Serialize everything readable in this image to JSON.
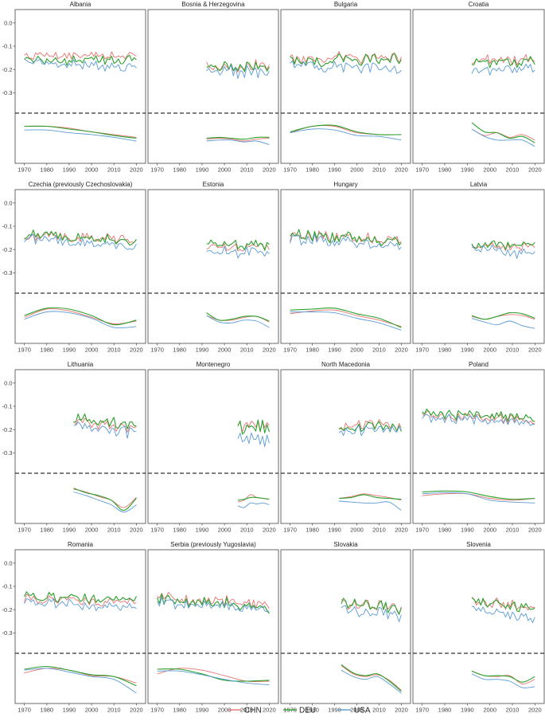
{
  "chart_data": {
    "type": "line",
    "layout": "small-multiples 4x4",
    "x_ticks": [
      1970,
      1980,
      1990,
      2000,
      2010,
      2020
    ],
    "xlim": [
      1968,
      2022
    ],
    "y_ticks": [
      "0.0",
      "-0.1",
      "-0.2",
      "-0.3"
    ],
    "ylim_upper": [
      0.03,
      -0.36
    ],
    "divider": "dashed",
    "grid": false,
    "legend_position": "bottom",
    "series": [
      {
        "name": "CHN",
        "color": "#e4736f"
      },
      {
        "name": "DEU",
        "color": "#2ca02c"
      },
      {
        "name": "USA",
        "color": "#5b9bd5"
      }
    ],
    "panels": [
      {
        "title": "Albania",
        "start": 1970,
        "levels": [
          -0.14,
          -0.16,
          -0.18
        ],
        "trend": [
          0,
          0,
          0.03
        ],
        "noise": 0.02,
        "smooth": [
          [
            -0.07,
            -0.07,
            -0.11
          ],
          [
            -0.07,
            -0.07,
            -0.11
          ],
          [
            -0.09,
            -0.1,
            -0.14
          ],
          [
            -0.13,
            -0.13,
            -0.16
          ],
          [
            -0.16,
            -0.17,
            -0.19
          ],
          [
            -0.19,
            -0.2,
            -0.23
          ]
        ]
      },
      {
        "title": "Bosnia & Herzegovina",
        "start": 1992,
        "levels": [
          -0.19,
          -0.19,
          -0.21
        ],
        "trend": [
          0,
          0,
          0
        ],
        "noise": 0.03,
        "smooth": [
          [
            -0.21,
            -0.2,
            -0.23
          ],
          [
            -0.2,
            -0.19,
            -0.22
          ],
          [
            -0.21,
            -0.2,
            -0.22
          ],
          [
            -0.23,
            -0.21,
            -0.24
          ],
          [
            -0.21,
            -0.19,
            -0.23
          ],
          [
            -0.2,
            -0.19,
            -0.27
          ]
        ]
      },
      {
        "title": "Bulgaria",
        "start": 1970,
        "levels": [
          -0.15,
          -0.16,
          -0.19
        ],
        "trend": [
          0,
          0,
          0.03
        ],
        "noise": 0.025,
        "smooth": [
          [
            -0.14,
            -0.13,
            -0.14
          ],
          [
            -0.07,
            -0.07,
            -0.1
          ],
          [
            -0.07,
            -0.06,
            -0.11
          ],
          [
            -0.14,
            -0.13,
            -0.17
          ],
          [
            -0.16,
            -0.16,
            -0.18
          ],
          [
            -0.16,
            -0.16,
            -0.22
          ]
        ]
      },
      {
        "title": "Croatia",
        "start": 1992,
        "levels": [
          -0.16,
          -0.17,
          -0.2
        ],
        "trend": [
          0,
          0,
          0
        ],
        "noise": 0.025,
        "smooth": [
          [
            -0.1,
            -0.03,
            -0.1
          ],
          [
            -0.17,
            -0.13,
            -0.18
          ],
          [
            -0.14,
            -0.14,
            -0.22
          ],
          [
            -0.19,
            -0.2,
            -0.22
          ],
          [
            -0.16,
            -0.18,
            -0.22
          ],
          [
            -0.22,
            -0.25,
            -0.29
          ]
        ]
      },
      {
        "title": "Czechia (previously Czechoslovakia)",
        "start": 1970,
        "levels": [
          -0.15,
          -0.15,
          -0.17
        ],
        "trend": [
          0.02,
          0.03,
          0.04
        ],
        "noise": 0.02,
        "smooth": [
          [
            -0.19,
            -0.17,
            -0.21
          ],
          [
            -0.1,
            -0.09,
            -0.13
          ],
          [
            -0.12,
            -0.1,
            -0.14
          ],
          [
            -0.19,
            -0.17,
            -0.2
          ],
          [
            -0.26,
            -0.27,
            -0.3
          ],
          [
            -0.23,
            -0.22,
            -0.29
          ]
        ]
      },
      {
        "title": "Estonia",
        "start": 1992,
        "levels": [
          -0.19,
          -0.18,
          -0.21
        ],
        "trend": [
          0,
          0,
          0
        ],
        "noise": 0.025,
        "smooth": [
          [
            -0.17,
            -0.14,
            -0.17
          ],
          [
            -0.22,
            -0.22,
            -0.24
          ],
          [
            -0.22,
            -0.21,
            -0.25
          ],
          [
            -0.19,
            -0.18,
            -0.22
          ],
          [
            -0.18,
            -0.18,
            -0.23
          ],
          [
            -0.24,
            -0.23,
            -0.3
          ]
        ]
      },
      {
        "title": "Hungary",
        "start": 1970,
        "levels": [
          -0.15,
          -0.15,
          -0.17
        ],
        "trend": [
          0.02,
          0.03,
          0.03
        ],
        "noise": 0.025,
        "smooth": [
          [
            -0.15,
            -0.11,
            -0.13
          ],
          [
            -0.12,
            -0.1,
            -0.13
          ],
          [
            -0.11,
            -0.09,
            -0.14
          ],
          [
            -0.17,
            -0.15,
            -0.2
          ],
          [
            -0.22,
            -0.2,
            -0.25
          ],
          [
            -0.29,
            -0.3,
            -0.33
          ]
        ]
      },
      {
        "title": "Latvia",
        "start": 1992,
        "levels": [
          -0.19,
          -0.18,
          -0.21
        ],
        "trend": [
          0,
          0,
          0.03
        ],
        "noise": 0.025,
        "smooth": [
          [
            -0.18,
            -0.17,
            -0.2
          ],
          [
            -0.21,
            -0.21,
            -0.24
          ],
          [
            -0.18,
            -0.18,
            -0.27
          ],
          [
            -0.16,
            -0.14,
            -0.23
          ],
          [
            -0.17,
            -0.15,
            -0.28
          ],
          [
            -0.21,
            -0.2,
            -0.31
          ]
        ]
      },
      {
        "title": "Lithuania",
        "start": 1992,
        "levels": [
          -0.18,
          -0.17,
          -0.2
        ],
        "trend": [
          0.04,
          0.04,
          0.04
        ],
        "noise": 0.025,
        "smooth": [
          [
            -0.1,
            -0.09,
            -0.13
          ],
          [
            -0.13,
            -0.14,
            -0.17
          ],
          [
            -0.18,
            -0.17,
            -0.22
          ],
          [
            -0.22,
            -0.22,
            -0.27
          ],
          [
            -0.3,
            -0.33,
            -0.35
          ],
          [
            -0.19,
            -0.2,
            -0.27
          ]
        ]
      },
      {
        "title": "Montenegro",
        "start": 2006,
        "levels": [
          -0.18,
          -0.19,
          -0.24
        ],
        "trend": [
          0,
          0,
          0
        ],
        "noise": 0.03,
        "smooth": [
          [
            -0.24,
            -0.22,
            -0.28
          ],
          [
            -0.22,
            -0.21,
            -0.3
          ],
          [
            -0.16,
            -0.19,
            -0.25
          ],
          [
            -0.19,
            -0.19,
            -0.26
          ],
          [
            -0.2,
            -0.2,
            -0.25
          ],
          [
            -0.21,
            -0.21,
            -0.27
          ]
        ]
      },
      {
        "title": "North Macedonia",
        "start": 1992,
        "levels": [
          -0.18,
          -0.19,
          -0.2
        ],
        "trend": [
          0,
          0,
          0
        ],
        "noise": 0.025,
        "smooth": [
          [
            -0.2,
            -0.2,
            -0.23
          ],
          [
            -0.18,
            -0.19,
            -0.24
          ],
          [
            -0.15,
            -0.16,
            -0.25
          ],
          [
            -0.17,
            -0.19,
            -0.25
          ],
          [
            -0.19,
            -0.2,
            -0.24
          ],
          [
            -0.22,
            -0.21,
            -0.33
          ]
        ]
      },
      {
        "title": "Poland",
        "start": 1970,
        "levels": [
          -0.15,
          -0.14,
          -0.16
        ],
        "trend": [
          0.02,
          0.02,
          0.02
        ],
        "noise": 0.02,
        "smooth": [
          [
            -0.17,
            -0.13,
            -0.15
          ],
          [
            -0.15,
            -0.12,
            -0.14
          ],
          [
            -0.15,
            -0.13,
            -0.15
          ],
          [
            -0.2,
            -0.18,
            -0.22
          ],
          [
            -0.22,
            -0.21,
            -0.24
          ],
          [
            -0.2,
            -0.2,
            -0.25
          ]
        ]
      },
      {
        "title": "Romania",
        "start": 1970,
        "levels": [
          -0.16,
          -0.15,
          -0.18
        ],
        "trend": [
          0.02,
          0.02,
          0.03
        ],
        "noise": 0.02,
        "smooth": [
          [
            -0.14,
            -0.1,
            -0.11
          ],
          [
            -0.09,
            -0.07,
            -0.09
          ],
          [
            -0.11,
            -0.11,
            -0.13
          ],
          [
            -0.17,
            -0.16,
            -0.18
          ],
          [
            -0.18,
            -0.18,
            -0.21
          ],
          [
            -0.25,
            -0.28,
            -0.36
          ]
        ]
      },
      {
        "title": "Serbia (previously Yugoslavia)",
        "start": 1970,
        "levels": [
          -0.16,
          -0.17,
          -0.18
        ],
        "trend": [
          0.03,
          0.04,
          0.03
        ],
        "noise": 0.025,
        "smooth": [
          [
            -0.15,
            -0.1,
            -0.12
          ],
          [
            -0.09,
            -0.1,
            -0.12
          ],
          [
            -0.11,
            -0.15,
            -0.16
          ],
          [
            -0.17,
            -0.22,
            -0.21
          ],
          [
            -0.23,
            -0.23,
            -0.25
          ],
          [
            -0.23,
            -0.22,
            -0.27
          ]
        ]
      },
      {
        "title": "Slovakia",
        "start": 1993,
        "levels": [
          -0.18,
          -0.18,
          -0.21
        ],
        "trend": [
          0.03,
          0.03,
          0.03
        ],
        "noise": 0.025,
        "smooth": [
          [
            -0.06,
            -0.05,
            -0.11
          ],
          [
            -0.15,
            -0.14,
            -0.18
          ],
          [
            -0.18,
            -0.17,
            -0.21
          ],
          [
            -0.16,
            -0.15,
            -0.18
          ],
          [
            -0.22,
            -0.23,
            -0.26
          ],
          [
            -0.33,
            -0.34,
            -0.36
          ]
        ]
      },
      {
        "title": "Slovenia",
        "start": 1992,
        "levels": [
          -0.18,
          -0.18,
          -0.22
        ],
        "trend": [
          0.02,
          0.02,
          0.03
        ],
        "noise": 0.025,
        "smooth": [
          [
            -0.12,
            -0.12,
            -0.15
          ],
          [
            -0.17,
            -0.17,
            -0.21
          ],
          [
            -0.18,
            -0.17,
            -0.21
          ],
          [
            -0.17,
            -0.18,
            -0.23
          ],
          [
            -0.26,
            -0.24,
            -0.3
          ],
          [
            -0.21,
            -0.18,
            -0.29
          ]
        ]
      }
    ]
  }
}
